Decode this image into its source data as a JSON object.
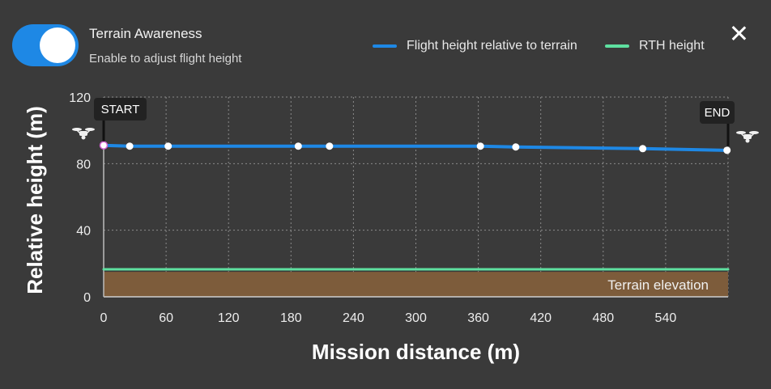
{
  "header": {
    "toggle_state": "on",
    "title": "Terrain Awareness",
    "subtitle": "Enable to adjust flight height",
    "close_icon": "close-icon"
  },
  "legend": [
    {
      "label": "Flight height relative to terrain",
      "color": "#1e88e5"
    },
    {
      "label": "RTH height",
      "color": "#5ee0a0"
    }
  ],
  "chart_data": {
    "type": "line",
    "xlabel": "Mission distance (m)",
    "ylabel": "Relative height (m)",
    "xlim": [
      0,
      600
    ],
    "ylim": [
      0,
      120
    ],
    "x_ticks": [
      0,
      60,
      120,
      180,
      240,
      300,
      360,
      420,
      480,
      540
    ],
    "y_ticks": [
      0,
      40,
      80,
      120
    ],
    "grid": true,
    "series": [
      {
        "name": "Flight height relative to terrain",
        "color": "#1e88e5",
        "points": [
          [
            0,
            91
          ],
          [
            25,
            90.5
          ],
          [
            62,
            90.5
          ],
          [
            187,
            90.5
          ],
          [
            217,
            90.5
          ],
          [
            362,
            90.5
          ],
          [
            396,
            90
          ],
          [
            518,
            89
          ],
          [
            599,
            88
          ]
        ]
      },
      {
        "name": "RTH height",
        "color": "#5ee0a0",
        "points": [
          [
            0,
            16.5
          ],
          [
            600,
            16.5
          ]
        ]
      }
    ],
    "terrain": {
      "label": "Terrain elevation",
      "height": 15,
      "color": "#7d5c3b"
    },
    "markers": [
      {
        "label": "START",
        "x": 0
      },
      {
        "label": "END",
        "x": 600
      }
    ]
  }
}
